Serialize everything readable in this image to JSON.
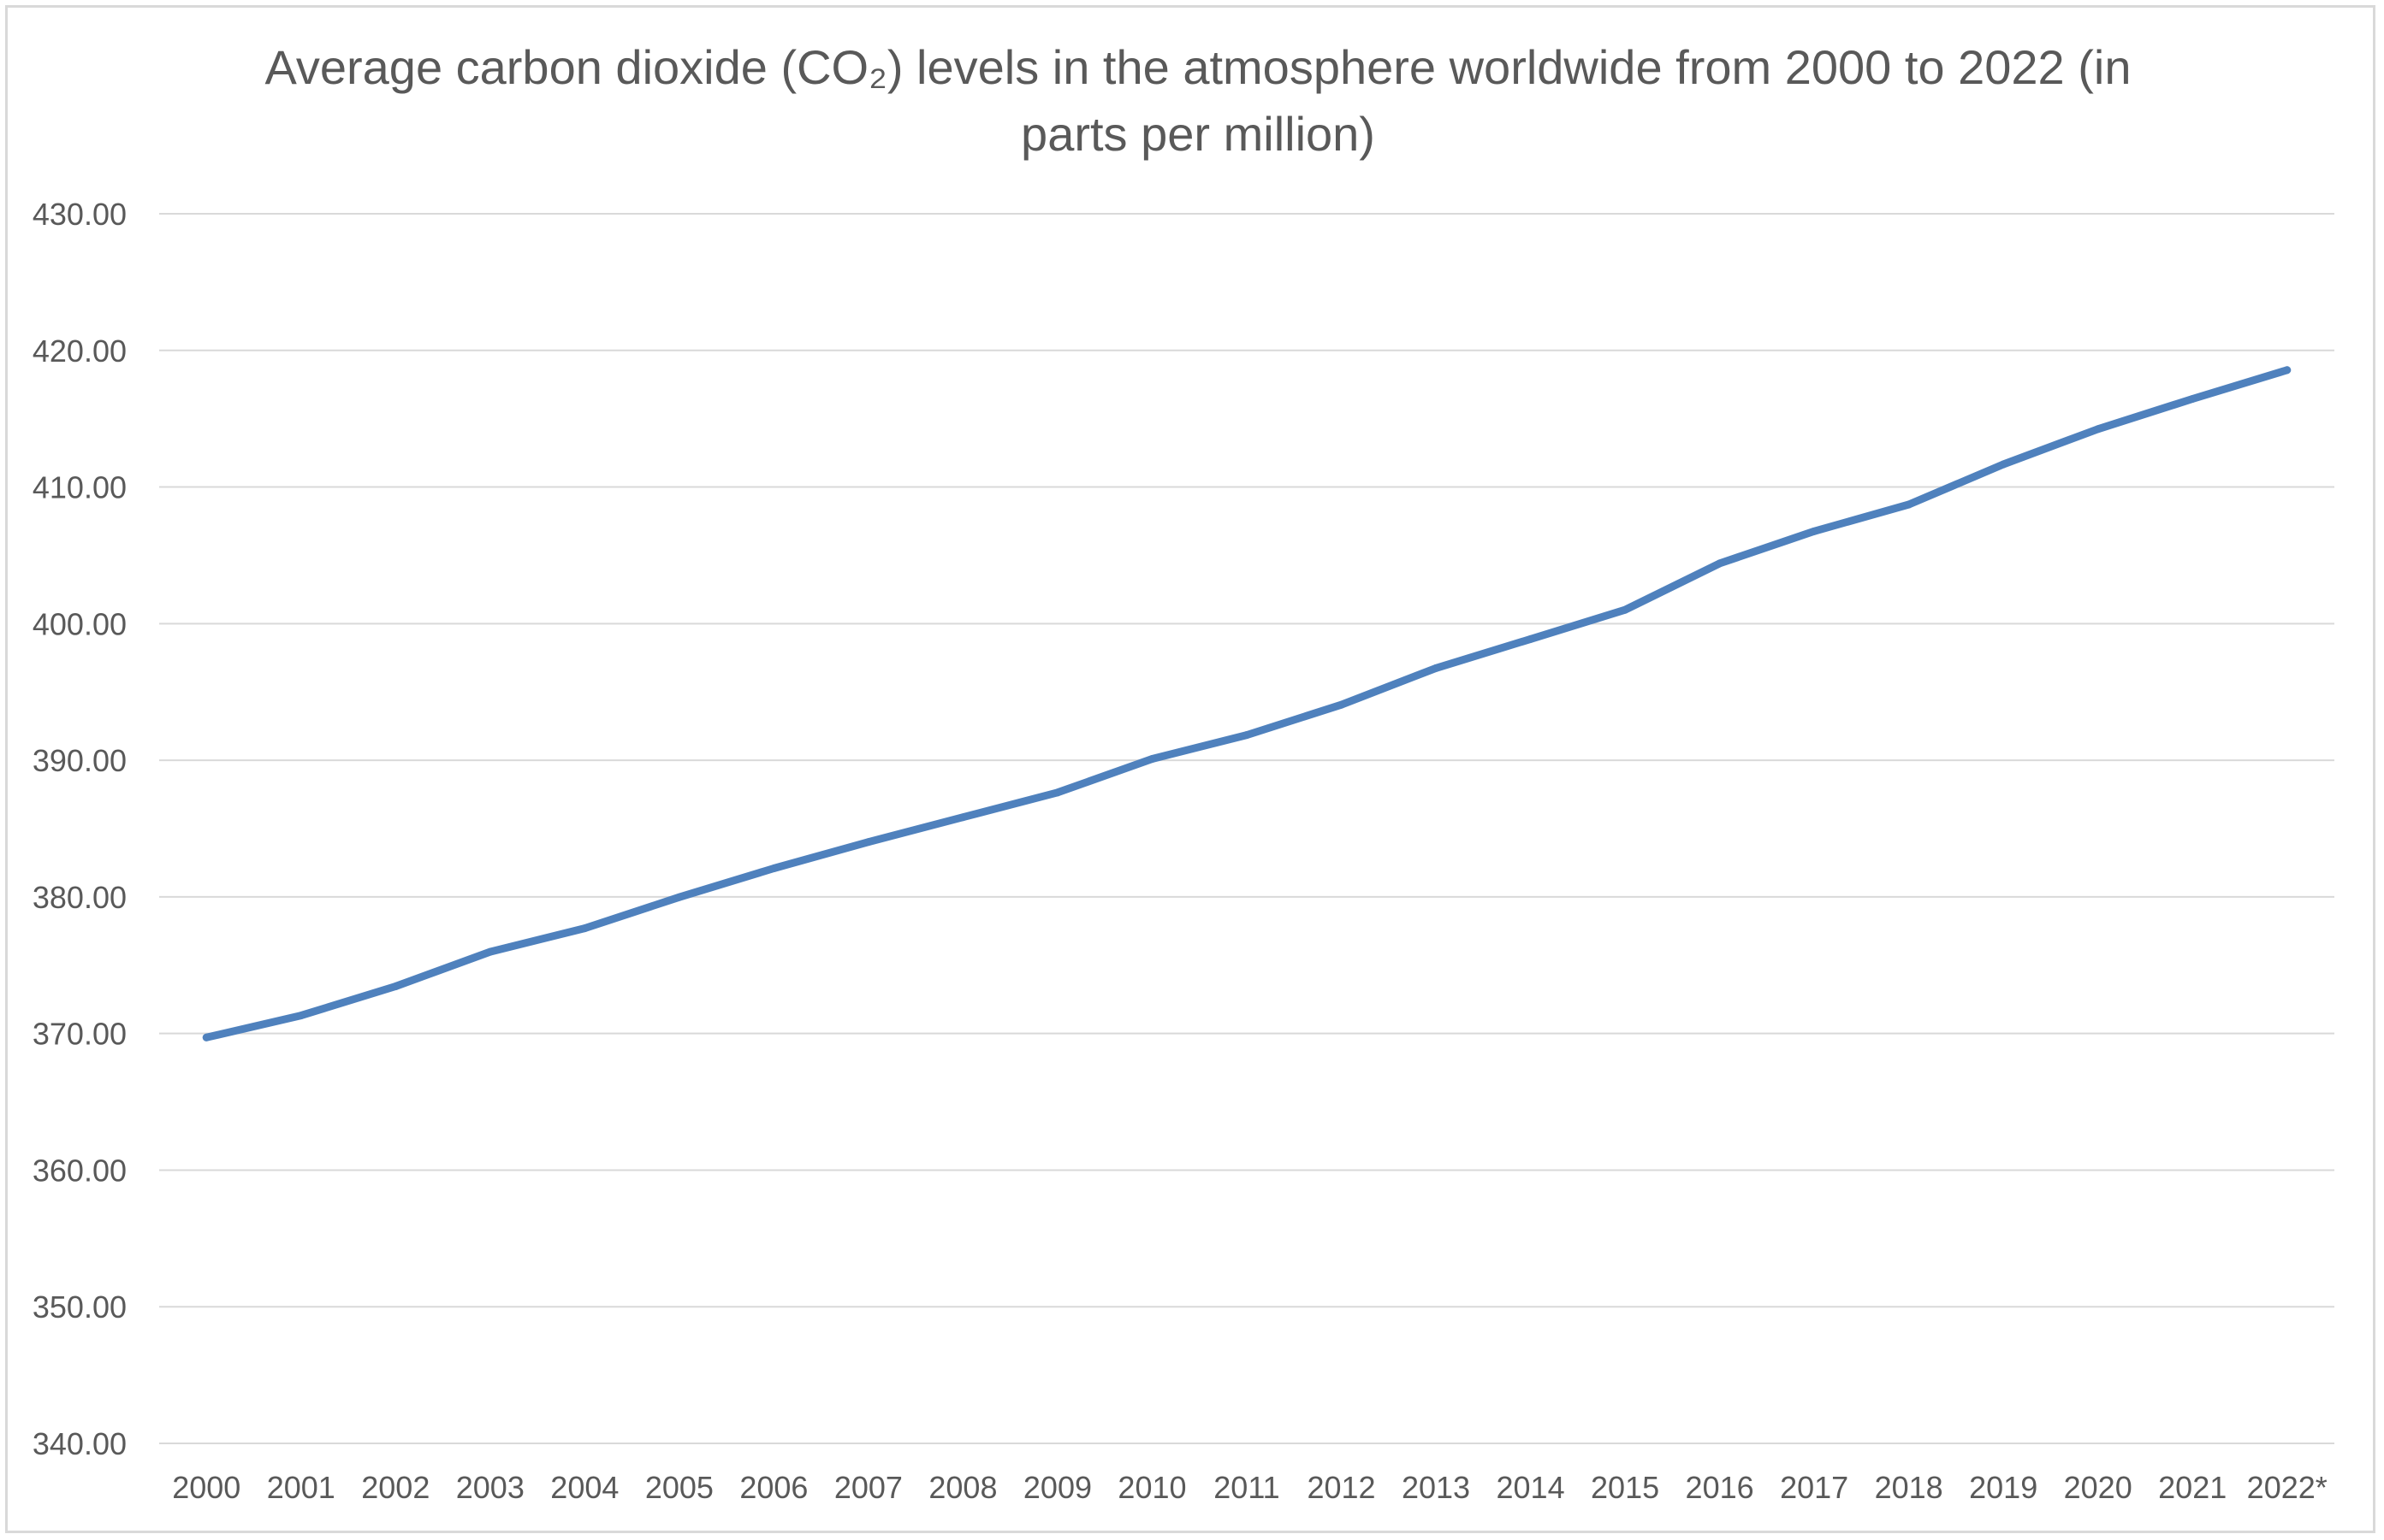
{
  "chart_data": {
    "type": "line",
    "title": "Average carbon dioxide (CO₂) levels in the atmosphere worldwide from 2000 to 2022 (in parts per million)",
    "xlabel": "",
    "ylabel": "",
    "categories": [
      "2000",
      "2001",
      "2002",
      "2003",
      "2004",
      "2005",
      "2006",
      "2007",
      "2008",
      "2009",
      "2010",
      "2011",
      "2012",
      "2013",
      "2014",
      "2015",
      "2016",
      "2017",
      "2018",
      "2019",
      "2020",
      "2021",
      "2022*"
    ],
    "series": [
      {
        "values": [
          369.71,
          371.32,
          373.45,
          375.98,
          377.7,
          379.98,
          382.09,
          384.02,
          385.83,
          387.64,
          390.1,
          391.85,
          394.06,
          396.74,
          398.87,
          401.01,
          404.41,
          406.76,
          408.72,
          411.66,
          414.24,
          416.45,
          418.56
        ]
      }
    ],
    "ylim": [
      340,
      430
    ],
    "yticks": [
      "340.00",
      "350.00",
      "360.00",
      "370.00",
      "380.00",
      "390.00",
      "400.00",
      "410.00",
      "420.00",
      "430.00"
    ],
    "grid": true,
    "legend": "none",
    "colors": {
      "line": "#4f81bd",
      "grid": "#d9d9d9",
      "text": "#595959"
    }
  }
}
